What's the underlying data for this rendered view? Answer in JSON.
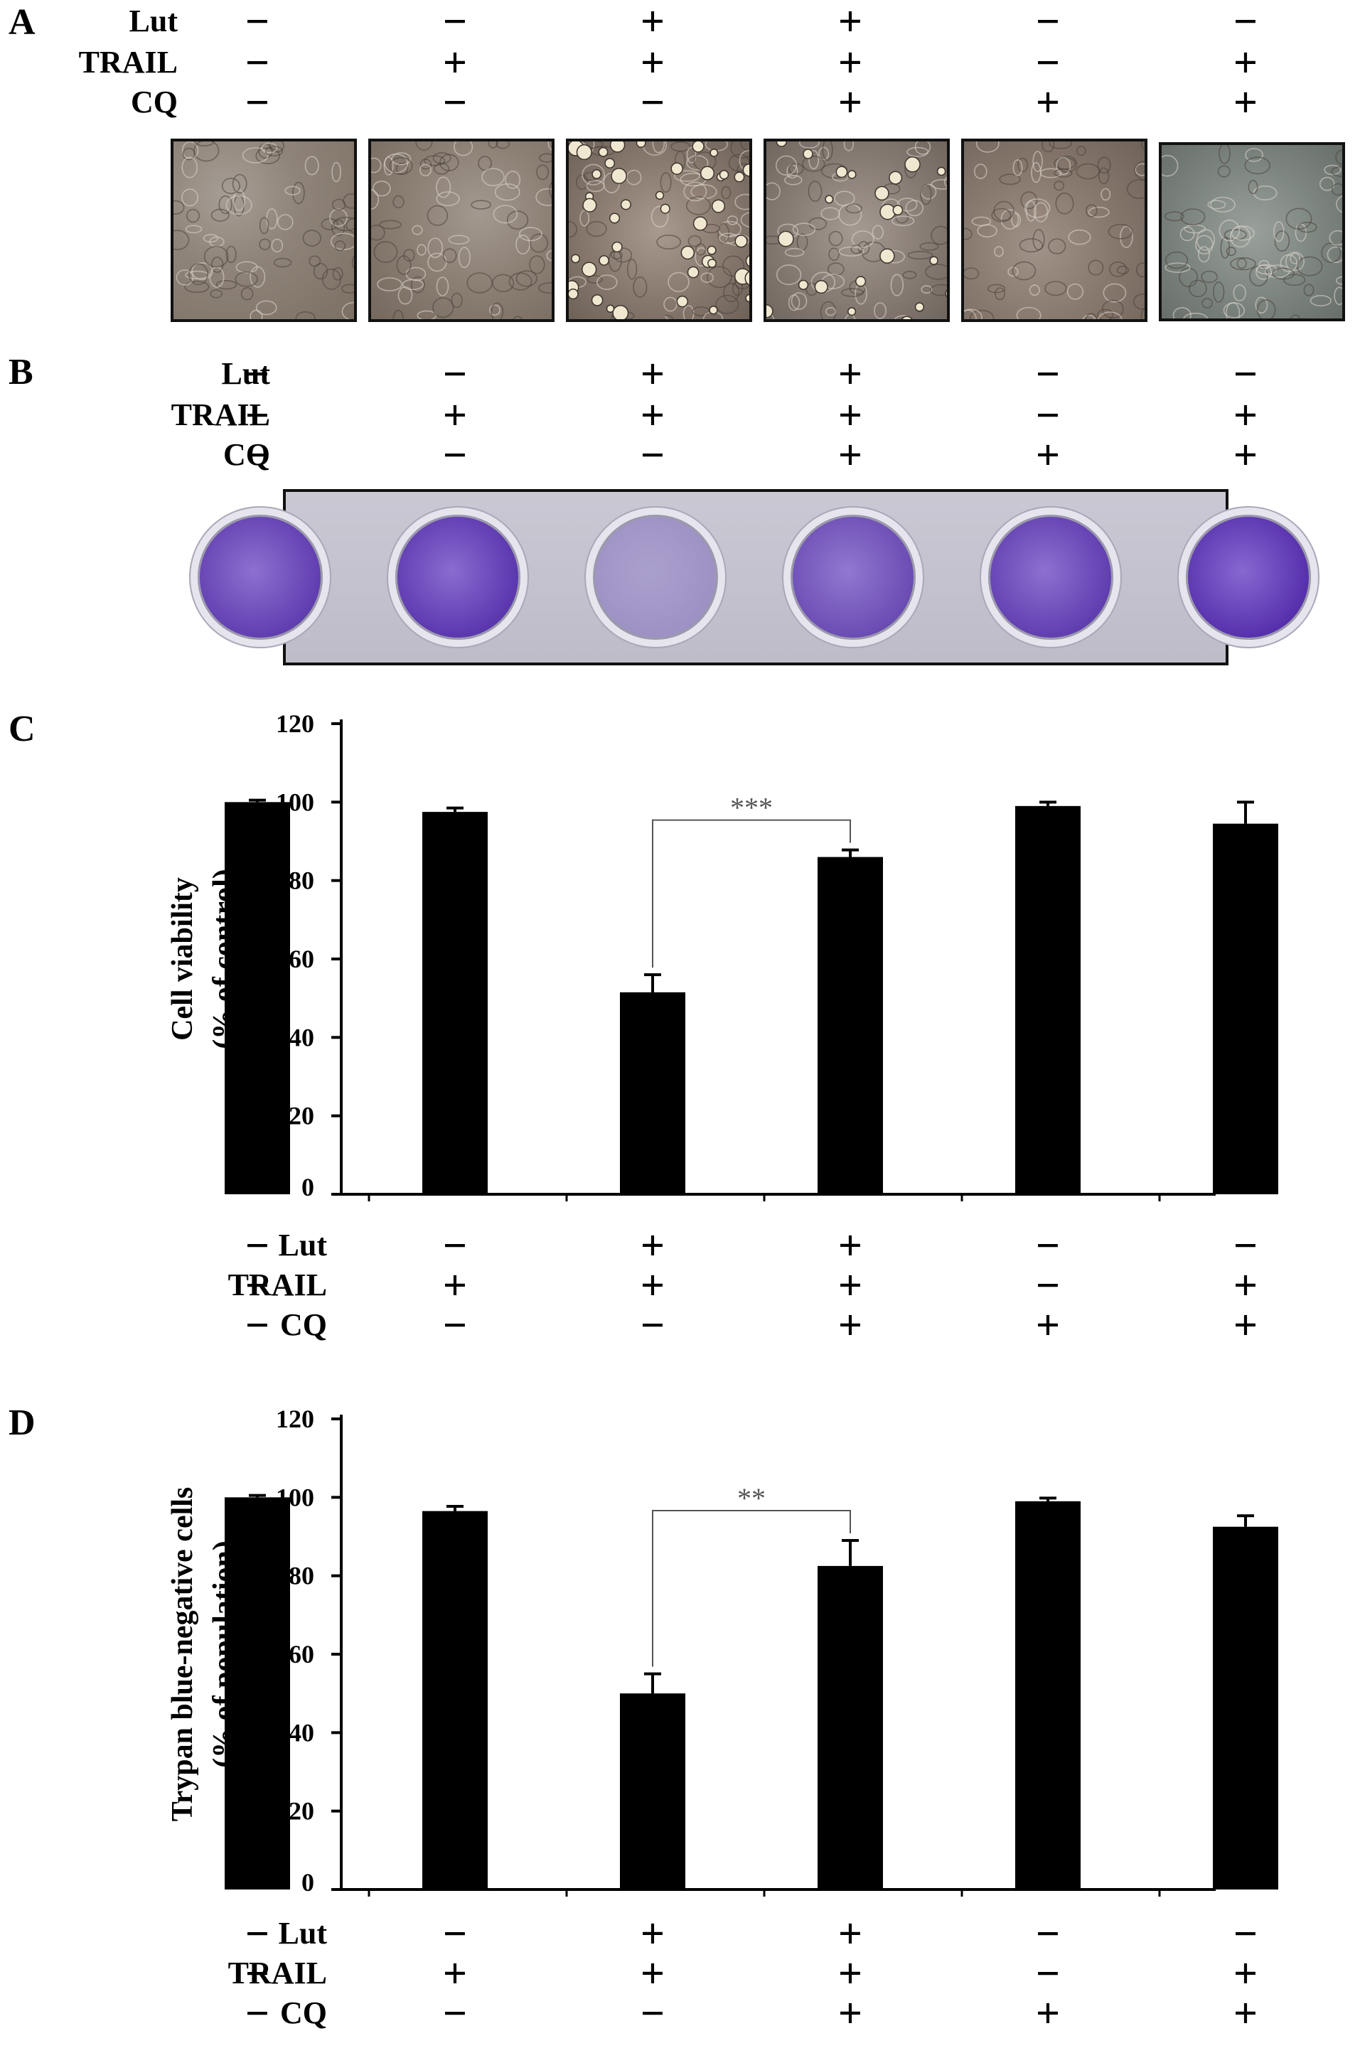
{
  "panels": {
    "a": {
      "letter": "A"
    },
    "b": {
      "letter": "B"
    },
    "c": {
      "letter": "C"
    },
    "d": {
      "letter": "D"
    }
  },
  "treatments": {
    "labels": [
      "Lut",
      "TRAIL",
      "CQ"
    ],
    "lut": [
      "−",
      "−",
      "+",
      "+",
      "−",
      "−"
    ],
    "trail": [
      "−",
      "+",
      "+",
      "+",
      "−",
      "+"
    ],
    "cq": [
      "−",
      "−",
      "−",
      "+",
      "+",
      "+"
    ]
  },
  "colors": {
    "bar": "#000000",
    "micrograph": "#8a7e74",
    "crystal_violet": "#5b2fb0",
    "plate": "#c4c3cf"
  },
  "chart_data": [
    {
      "type": "bar",
      "panel": "C",
      "title": "",
      "ylabel": "Cell viability\n(% of control)",
      "ylabel_lines": [
        "Cell viability",
        "(% of control)"
      ],
      "ylim": [
        0,
        120
      ],
      "yticks": [
        "0",
        "20",
        "40",
        "60",
        "80",
        "100",
        "120"
      ],
      "values": [
        100,
        97.5,
        51.5,
        86,
        99,
        94.5
      ],
      "errors": [
        0.5,
        1,
        4.5,
        1.8,
        1,
        5.5
      ],
      "significance": {
        "from": 2,
        "to": 3,
        "label": "***"
      }
    },
    {
      "type": "bar",
      "panel": "D",
      "title": "",
      "ylabel": "Trypan blue-negative cells\n(% of population)",
      "ylabel_lines": [
        "Trypan blue-negative cells",
        "(% of population)"
      ],
      "ylim": [
        0,
        120
      ],
      "yticks": [
        "0",
        "20",
        "40",
        "60",
        "80",
        "100",
        "120"
      ],
      "values": [
        100,
        96.5,
        50,
        82.5,
        99,
        92.5
      ],
      "errors": [
        0.5,
        1.2,
        5,
        6.5,
        0.8,
        2.8
      ],
      "significance": {
        "from": 2,
        "to": 3,
        "label": "**"
      }
    }
  ]
}
